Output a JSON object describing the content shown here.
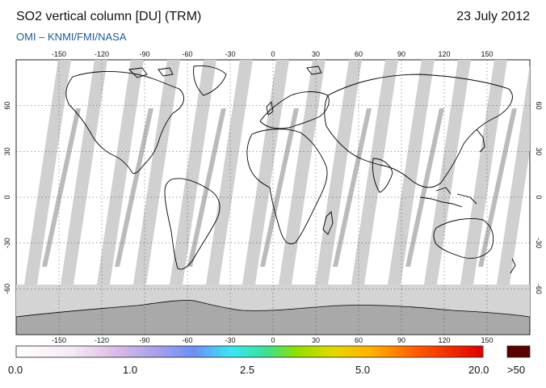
{
  "header": {
    "title": "SO2 vertical column [DU] (TRM)",
    "date": "23 July 2012",
    "subtitle": "OMI  –  KNMI/FMI/NASA"
  },
  "map": {
    "lon_ticks": [
      "-150",
      "-120",
      "-90",
      "-60",
      "-30",
      "0",
      "30",
      "60",
      "90",
      "120",
      "150"
    ],
    "lat_ticks_left": [
      "60",
      "30",
      "0",
      "-30",
      "-60"
    ],
    "lat_ticks_right": [
      "60",
      "30",
      "0",
      "-30",
      "-60"
    ],
    "colors": {
      "ocean": "#ffffff",
      "swath_gap": "#d0d0d0",
      "row_anomaly": "#aaaaaa",
      "polar_night": "#cfcfcf",
      "antarctica": "#a8a8a8",
      "coast": "#000000"
    }
  },
  "colorbar": {
    "labels": [
      "0.0",
      "1.0",
      "2.5",
      "5.0",
      "20.0"
    ],
    "overflow_label": ">50",
    "overflow_color": "#5a0000"
  }
}
